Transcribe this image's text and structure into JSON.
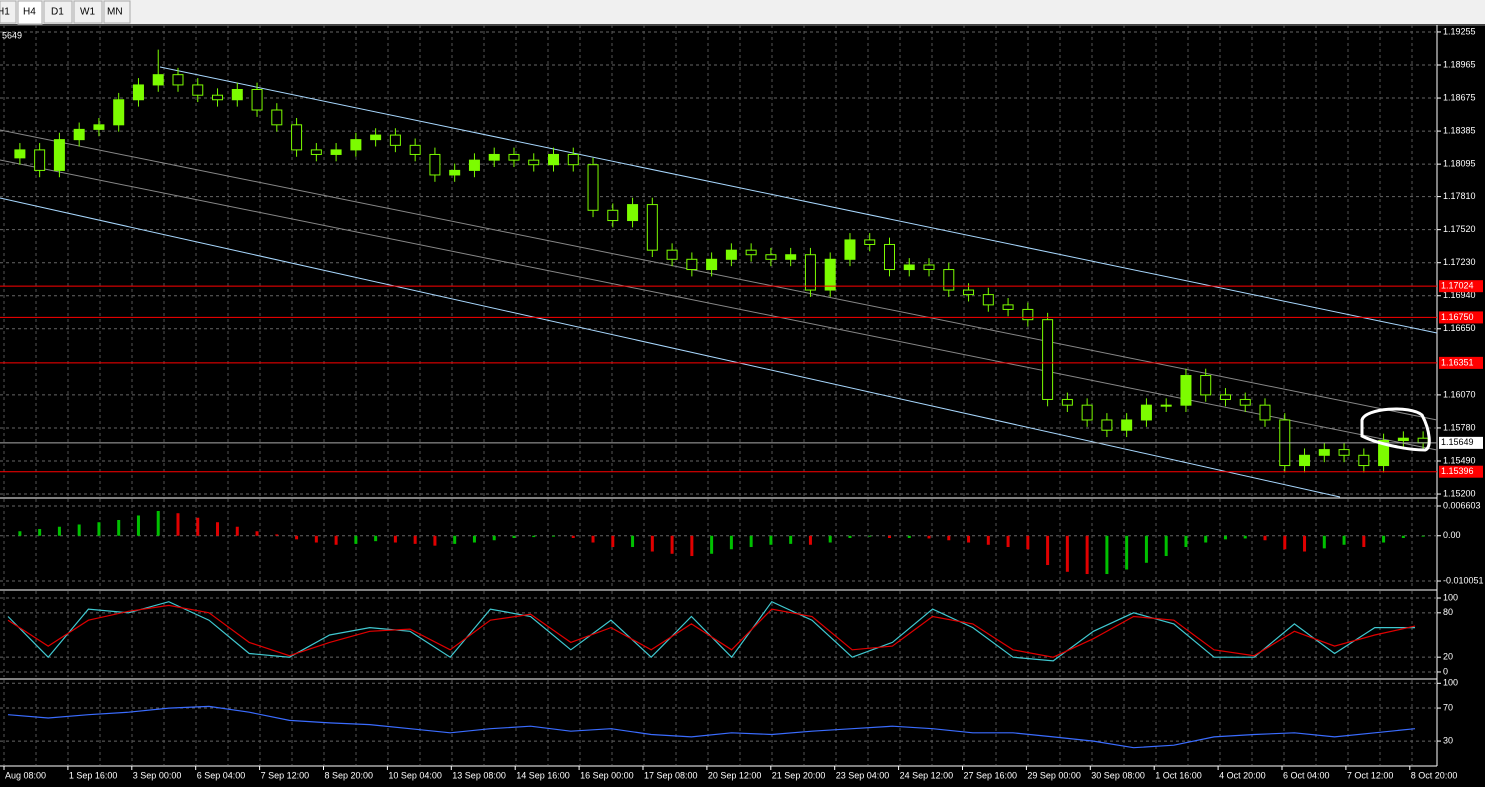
{
  "tabs": [
    "H1",
    "H4",
    "D1",
    "W1",
    "MN"
  ],
  "chart_data": [
    {
      "type": "candlestick",
      "corner_label": "5649",
      "candles": [
        [
          1.1815,
          1.1828,
          1.1809,
          1.1822
        ],
        [
          1.1822,
          1.1828,
          1.1798,
          1.1804
        ],
        [
          1.1804,
          1.1837,
          1.1798,
          1.1831
        ],
        [
          1.1831,
          1.1846,
          1.1825,
          1.184
        ],
        [
          1.184,
          1.185,
          1.1834,
          1.1844
        ],
        [
          1.1844,
          1.1872,
          1.1838,
          1.1866
        ],
        [
          1.1866,
          1.1885,
          1.186,
          1.1879
        ],
        [
          1.1879,
          1.191,
          1.1873,
          1.1888
        ],
        [
          1.1888,
          1.1894,
          1.1873,
          1.1879
        ],
        [
          1.1879,
          1.1885,
          1.1864,
          1.187
        ],
        [
          1.187,
          1.1876,
          1.186,
          1.1866
        ],
        [
          1.1866,
          1.1881,
          1.186,
          1.1875
        ],
        [
          1.1875,
          1.1881,
          1.1851,
          1.1857
        ],
        [
          1.1857,
          1.1863,
          1.1838,
          1.1844
        ],
        [
          1.1844,
          1.185,
          1.1816,
          1.1822
        ],
        [
          1.1822,
          1.1828,
          1.1812,
          1.1818
        ],
        [
          1.1818,
          1.1828,
          1.1812,
          1.1822
        ],
        [
          1.1822,
          1.1837,
          1.1816,
          1.1831
        ],
        [
          1.1831,
          1.1841,
          1.1825,
          1.1835
        ],
        [
          1.1835,
          1.1841,
          1.182,
          1.1826
        ],
        [
          1.1826,
          1.1832,
          1.1812,
          1.1818
        ],
        [
          1.1818,
          1.1824,
          1.1794,
          1.18
        ],
        [
          1.18,
          1.181,
          1.1794,
          1.1804
        ],
        [
          1.1804,
          1.1819,
          1.1798,
          1.1813
        ],
        [
          1.1813,
          1.1824,
          1.1807,
          1.1818
        ],
        [
          1.1818,
          1.1824,
          1.1807,
          1.1813
        ],
        [
          1.1813,
          1.1819,
          1.1803,
          1.1809
        ],
        [
          1.1809,
          1.1824,
          1.1803,
          1.1818
        ],
        [
          1.1818,
          1.1824,
          1.1803,
          1.1809
        ],
        [
          1.1809,
          1.1815,
          1.1763,
          1.1769
        ],
        [
          1.1769,
          1.1775,
          1.1754,
          1.176
        ],
        [
          1.176,
          1.178,
          1.1754,
          1.1774
        ],
        [
          1.1774,
          1.178,
          1.1728,
          1.1734
        ],
        [
          1.1734,
          1.174,
          1.172,
          1.1726
        ],
        [
          1.1726,
          1.1732,
          1.1711,
          1.1717
        ],
        [
          1.1717,
          1.1732,
          1.1711,
          1.1726
        ],
        [
          1.1726,
          1.174,
          1.172,
          1.1734
        ],
        [
          1.1734,
          1.174,
          1.1724,
          1.173
        ],
        [
          1.173,
          1.1736,
          1.172,
          1.1726
        ],
        [
          1.1726,
          1.1736,
          1.172,
          1.173
        ],
        [
          1.173,
          1.1736,
          1.1693,
          1.1699
        ],
        [
          1.1699,
          1.1732,
          1.1693,
          1.1726
        ],
        [
          1.1726,
          1.1749,
          1.172,
          1.1743
        ],
        [
          1.1743,
          1.1749,
          1.1733,
          1.1739
        ],
        [
          1.1739,
          1.1745,
          1.1711,
          1.1717
        ],
        [
          1.1717,
          1.1727,
          1.1711,
          1.1721
        ],
        [
          1.1721,
          1.1727,
          1.1711,
          1.1717
        ],
        [
          1.1717,
          1.1723,
          1.1693,
          1.1699
        ],
        [
          1.1699,
          1.1705,
          1.1689,
          1.1695
        ],
        [
          1.1695,
          1.1701,
          1.168,
          1.1686
        ],
        [
          1.1686,
          1.1692,
          1.1676,
          1.1682
        ],
        [
          1.1682,
          1.1688,
          1.1667,
          1.1673
        ],
        [
          1.1673,
          1.1679,
          1.1597,
          1.1603
        ],
        [
          1.1603,
          1.1609,
          1.1592,
          1.1598
        ],
        [
          1.1598,
          1.1604,
          1.1579,
          1.1585
        ],
        [
          1.1585,
          1.1591,
          1.157,
          1.1576
        ],
        [
          1.1576,
          1.1591,
          1.157,
          1.1585
        ],
        [
          1.1585,
          1.1604,
          1.1579,
          1.1598
        ],
        [
          1.1598,
          1.1604,
          1.1592,
          1.1598
        ],
        [
          1.1598,
          1.163,
          1.1592,
          1.1624
        ],
        [
          1.1624,
          1.163,
          1.1601,
          1.1607
        ],
        [
          1.1607,
          1.1613,
          1.1597,
          1.1603
        ],
        [
          1.1603,
          1.1609,
          1.1592,
          1.1598
        ],
        [
          1.1598,
          1.1604,
          1.1579,
          1.1585
        ],
        [
          1.1585,
          1.1591,
          1.1539,
          1.1545
        ],
        [
          1.1545,
          1.156,
          1.1539,
          1.1554
        ],
        [
          1.1554,
          1.1565,
          1.1548,
          1.1559
        ],
        [
          1.1559,
          1.1565,
          1.1548,
          1.1554
        ],
        [
          1.1554,
          1.156,
          1.1539,
          1.1545
        ],
        [
          1.1545,
          1.1573,
          1.1539,
          1.1567
        ],
        [
          1.1567,
          1.1575,
          1.1561,
          1.1569
        ],
        [
          1.1569,
          1.1575,
          1.1559,
          1.1565
        ]
      ],
      "up_color": "#7cfc00",
      "down_color": "#000000",
      "wick_color": "#7cfc00",
      "ylim": [
        1.15174,
        1.19316
      ],
      "yticks": [
        {
          "value": 1.19255,
          "label": "1.19255"
        },
        {
          "value": 1.18965,
          "label": "1.18965"
        },
        {
          "value": 1.18675,
          "label": "1.18675"
        },
        {
          "value": 1.18385,
          "label": "1.18385"
        },
        {
          "value": 1.18095,
          "label": "1.18095"
        },
        {
          "value": 1.1781,
          "label": "1.17810"
        },
        {
          "value": 1.1752,
          "label": "1.17520"
        },
        {
          "value": 1.1723,
          "label": "1.17230"
        },
        {
          "value": 1.1694,
          "label": "1.16940"
        },
        {
          "value": 1.1665,
          "label": "1.16650"
        },
        {
          "value": 1.1607,
          "label": "1.16070"
        },
        {
          "value": 1.1578,
          "label": "1.15780"
        },
        {
          "value": 1.1549,
          "label": "1.15490"
        },
        {
          "value": 1.152,
          "label": "1.15200"
        }
      ],
      "levels": [
        1.17024,
        {
          "value": 1.1675,
          "label": "1.16750"
        },
        1.16351,
        1.15396
      ],
      "level_color": "#ff0000",
      "current_price": 1.15649,
      "grid": true,
      "x_labels": [
        "Aug 08:00",
        "1 Sep 16:00",
        "3 Sep 00:00",
        "6 Sep 04:00",
        "7 Sep 12:00",
        "8 Sep 20:00",
        "10 Sep 04:00",
        "13 Sep 08:00",
        "14 Sep 16:00",
        "16 Sep 00:00",
        "17 Sep 08:00",
        "20 Sep 12:00",
        "21 Sep 20:00",
        "23 Sep 04:00",
        "24 Sep 12:00",
        "27 Sep 16:00",
        "29 Sep 00:00",
        "30 Sep 08:00",
        "1 Oct 16:00",
        "4 Oct 20:00",
        "6 Oct 04:00",
        "7 Oct 12:00",
        "8 Oct 20:00"
      ]
    },
    {
      "type": "histogram",
      "up_color": "#00c000",
      "down_color": "#e00000",
      "values": [
        0.001,
        0.0015,
        0.002,
        0.0025,
        0.003,
        0.0035,
        0.0045,
        0.0055,
        0.005,
        0.004,
        0.003,
        0.002,
        0.001,
        0.0003,
        -0.0008,
        -0.0015,
        -0.002,
        -0.0018,
        -0.0012,
        -0.0015,
        -0.0018,
        -0.0022,
        -0.0018,
        -0.0015,
        -0.001,
        -0.0005,
        -0.0003,
        -0.0002,
        -0.0005,
        -0.0015,
        -0.0025,
        -0.0025,
        -0.0035,
        -0.004,
        -0.0045,
        -0.004,
        -0.003,
        -0.0025,
        -0.002,
        -0.0018,
        -0.002,
        -0.0015,
        -0.0005,
        -0.0002,
        -0.0005,
        -0.0005,
        -0.0006,
        -0.001,
        -0.0015,
        -0.002,
        -0.0025,
        -0.003,
        -0.0065,
        -0.008,
        -0.0085,
        -0.0085,
        -0.0075,
        -0.006,
        -0.0045,
        -0.0025,
        -0.0015,
        -0.0008,
        -0.0006,
        -0.001,
        -0.003,
        -0.0035,
        -0.0028,
        -0.002,
        -0.0025,
        -0.0015,
        -0.0005,
        -0.0002
      ],
      "ylim": [
        -0.0116,
        0.00816
      ],
      "yticks": [
        0.006603,
        {
          "value": 0,
          "label": "0.00"
        },
        -0.010051
      ]
    },
    {
      "type": "line",
      "series": [
        {
          "color": "#40c8d0",
          "values": [
            75,
            20,
            85,
            80,
            95,
            70,
            25,
            20,
            50,
            60,
            55,
            20,
            85,
            75,
            30,
            70,
            20,
            75,
            20,
            95,
            70,
            20,
            40,
            85,
            60,
            20,
            15,
            55,
            80,
            65,
            20,
            20,
            65,
            25,
            60,
            60
          ]
        },
        {
          "color": "#e00000",
          "values": [
            70,
            35,
            70,
            82,
            90,
            80,
            40,
            22,
            40,
            55,
            58,
            30,
            70,
            78,
            40,
            60,
            30,
            65,
            30,
            85,
            75,
            30,
            35,
            75,
            65,
            30,
            20,
            45,
            75,
            70,
            30,
            22,
            55,
            35,
            50,
            62
          ]
        }
      ],
      "ylim": [
        -6.8,
        109.5
      ],
      "yticks": [
        100,
        80,
        20,
        0
      ]
    },
    {
      "type": "line",
      "series": [
        {
          "color": "#3a6cff",
          "values": [
            62,
            58,
            62,
            65,
            70,
            72,
            65,
            55,
            52,
            50,
            45,
            40,
            45,
            48,
            42,
            45,
            38,
            35,
            40,
            38,
            42,
            45,
            48,
            45,
            40,
            40,
            35,
            30,
            22,
            25,
            35,
            38,
            40,
            35,
            40,
            45
          ]
        }
      ],
      "ylim": [
        1,
        104
      ],
      "yticks": [
        100,
        70,
        30
      ]
    }
  ]
}
